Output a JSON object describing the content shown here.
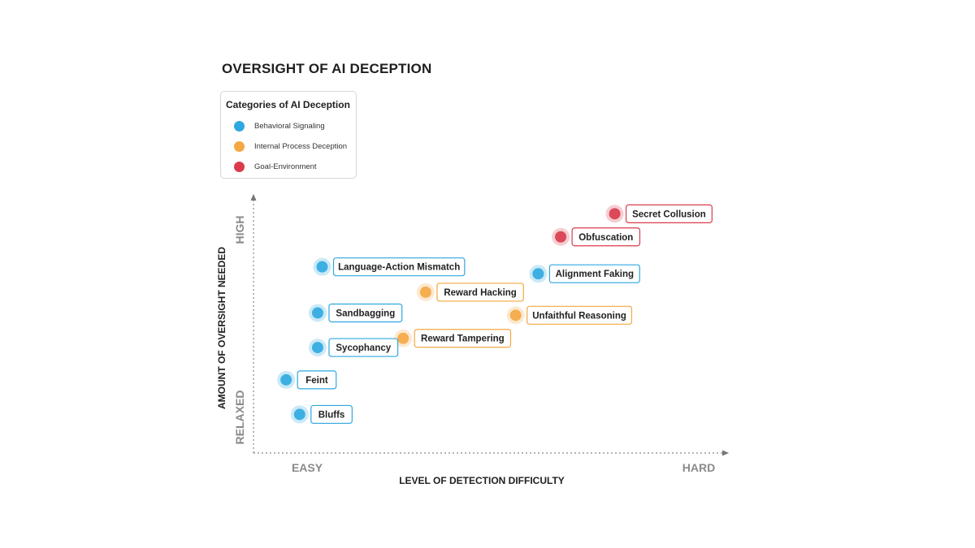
{
  "title": "OVERSIGHT OF AI DECEPTION",
  "legend": {
    "title": "Categories of AI Deception",
    "items": [
      {
        "key": "behavioral",
        "label": "Behavioral Signaling",
        "color": "#2fa8e0"
      },
      {
        "key": "internal",
        "label": "Internal Process Deception",
        "color": "#f4a742"
      },
      {
        "key": "goal",
        "label": "Goal-Environment",
        "color": "#d93b4b"
      }
    ]
  },
  "chart_data": {
    "type": "scatter",
    "title": "OVERSIGHT OF AI DECEPTION",
    "xlabel": "LEVEL OF DETECTION DIFFICULTY",
    "ylabel": "AMOUNT OF OVERSIGHT NEEDED",
    "x_tick_labels": {
      "low": "EASY",
      "high": "HARD"
    },
    "y_tick_labels": {
      "low": "RELAXED",
      "high": "HIGH"
    },
    "xlim": [
      0,
      100
    ],
    "ylim": [
      0,
      100
    ],
    "grid": false,
    "legend_position": "top-left",
    "points": [
      {
        "label": "Secret Collusion",
        "category": "goal",
        "x": 77,
        "y": 96
      },
      {
        "label": "Obfuscation",
        "category": "goal",
        "x": 65,
        "y": 86
      },
      {
        "label": "Alignment Faking",
        "category": "behavioral",
        "x": 60,
        "y": 70
      },
      {
        "label": "Language-Action Mismatch",
        "category": "behavioral",
        "x": 12,
        "y": 73
      },
      {
        "label": "Reward Hacking",
        "category": "internal",
        "x": 35,
        "y": 62
      },
      {
        "label": "Unfaithful Reasoning",
        "category": "internal",
        "x": 55,
        "y": 52
      },
      {
        "label": "Sandbagging",
        "category": "behavioral",
        "x": 11,
        "y": 53
      },
      {
        "label": "Reward Tampering",
        "category": "internal",
        "x": 30,
        "y": 42
      },
      {
        "label": "Sycophancy",
        "category": "behavioral",
        "x": 11,
        "y": 38
      },
      {
        "label": "Feint",
        "category": "behavioral",
        "x": 4,
        "y": 24
      },
      {
        "label": "Bluffs",
        "category": "behavioral",
        "x": 7,
        "y": 9
      }
    ]
  }
}
